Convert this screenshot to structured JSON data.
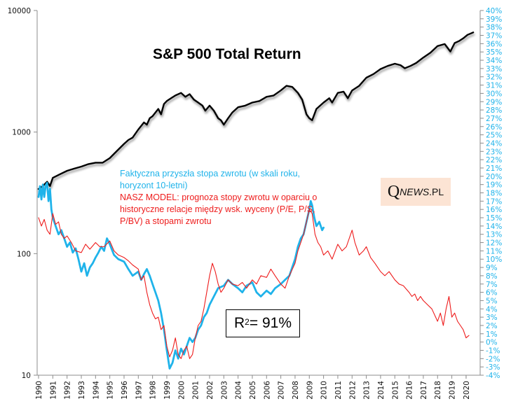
{
  "chart_data": {
    "type": "line",
    "title": "S&P 500 Total Return",
    "xlabel": "",
    "ylabel_left": "",
    "ylabel_right": "",
    "x_range": [
      1990,
      2021
    ],
    "x_ticks": [
      "1990",
      "1991",
      "1992",
      "1993",
      "1994",
      "1995",
      "1996",
      "1997",
      "1998",
      "1999",
      "2000",
      "2001",
      "2002",
      "2003",
      "2004",
      "2005",
      "2006",
      "2007",
      "2008",
      "2009",
      "2010",
      "2011",
      "2012",
      "2013",
      "2014",
      "2015",
      "2016",
      "2017",
      "2018",
      "2019",
      "2020"
    ],
    "y_left": {
      "scale": "log",
      "range": [
        10,
        10000
      ],
      "ticks": [
        "10",
        "100",
        "1000",
        "10000"
      ]
    },
    "y_right": {
      "scale": "linear",
      "range": [
        -4,
        40
      ],
      "ticks": [
        "40%",
        "39%",
        "38%",
        "37%",
        "36%",
        "35%",
        "34%",
        "33%",
        "32%",
        "31%",
        "30%",
        "29%",
        "28%",
        "27%",
        "26%",
        "25%",
        "24%",
        "23%",
        "22%",
        "21%",
        "20%",
        "19%",
        "18%",
        "17%",
        "16%",
        "15%",
        "14%",
        "13%",
        "12%",
        "11%",
        "10%",
        "9%",
        "8%",
        "7%",
        "6%",
        "5%",
        "4%",
        "3%",
        "2%",
        "1%",
        "0%",
        "-1%",
        "-2%",
        "-3%",
        "-4%"
      ]
    },
    "grid": false,
    "legend": {
      "placement": "center-left",
      "entries": [
        {
          "name": "Faktyczna przyszła stopa zwrotu (w skali roku, horyzont 10-letni)",
          "color": "#1fb3ea"
        },
        {
          "name": "NASZ MODEL: prognoza stopy zwrotu w oparciu o historyczne relacje między wsk. wyceny (P/E, P/S, P/BV) a stopami zwrotu",
          "color": "#ee1c1c"
        }
      ]
    },
    "series": [
      {
        "name": "S&P 500 Total Return",
        "axis": "left",
        "color": "#000000",
        "x": [
          1990.0,
          1990.3,
          1990.6,
          1990.8,
          1991.0,
          1991.5,
          1992.0,
          1992.5,
          1993.0,
          1993.5,
          1994.0,
          1994.5,
          1995.0,
          1995.5,
          1996.0,
          1996.3,
          1996.6,
          1997.0,
          1997.4,
          1997.6,
          1997.8,
          1998.0,
          1998.4,
          1998.6,
          1998.8,
          1999.0,
          1999.3,
          1999.6,
          2000.0,
          2000.3,
          2000.6,
          2000.9,
          2001.2,
          2001.5,
          2001.7,
          2002.0,
          2002.3,
          2002.6,
          2002.8,
          2003.0,
          2003.3,
          2003.6,
          2004.0,
          2004.5,
          2005.0,
          2005.5,
          2006.0,
          2006.5,
          2007.0,
          2007.4,
          2007.8,
          2008.2,
          2008.5,
          2008.8,
          2009.0,
          2009.2,
          2009.5,
          2010.0,
          2010.4,
          2010.6,
          2011.0,
          2011.4,
          2011.7,
          2012.0,
          2012.5,
          2013.0,
          2013.5,
          2014.0,
          2014.5,
          2015.0,
          2015.4,
          2015.7,
          2016.1,
          2016.5,
          2017.0,
          2017.5,
          2018.0,
          2018.5,
          2018.9,
          2019.2,
          2019.5,
          2019.8,
          2020.1,
          2020.5
        ],
        "values": [
          340,
          360,
          390,
          360,
          420,
          450,
          480,
          500,
          520,
          545,
          560,
          560,
          610,
          700,
          800,
          860,
          900,
          1050,
          1200,
          1150,
          1300,
          1350,
          1550,
          1400,
          1700,
          1800,
          1900,
          2000,
          2100,
          1950,
          2050,
          1850,
          1750,
          1650,
          1500,
          1650,
          1500,
          1300,
          1250,
          1150,
          1300,
          1450,
          1600,
          1650,
          1750,
          1800,
          1950,
          2000,
          2200,
          2400,
          2350,
          2100,
          1850,
          1400,
          1300,
          1250,
          1550,
          1750,
          1900,
          1750,
          2100,
          2150,
          1900,
          2200,
          2400,
          2800,
          3000,
          3300,
          3500,
          3650,
          3550,
          3350,
          3500,
          3700,
          4100,
          4500,
          5100,
          5300,
          4600,
          5400,
          5600,
          5900,
          6300,
          6600
        ]
      },
      {
        "name": "Faktyczna przyszła stopa zwrotu (w skali roku, horyzont 10-letni)",
        "axis": "right",
        "unit": "%",
        "color": "#1fb3ea",
        "x": [
          1990.0,
          1990.1,
          1990.2,
          1990.3,
          1990.4,
          1990.5,
          1990.6,
          1990.7,
          1990.8,
          1990.9,
          1991.0,
          1991.2,
          1991.4,
          1991.6,
          1991.8,
          1992.0,
          1992.2,
          1992.4,
          1992.6,
          1992.8,
          1993.0,
          1993.2,
          1993.4,
          1993.6,
          1993.8,
          1994.0,
          1994.2,
          1994.4,
          1994.6,
          1994.8,
          1995.0,
          1995.3,
          1995.6,
          1996.0,
          1996.3,
          1996.6,
          1997.0,
          1997.2,
          1997.4,
          1997.6,
          1997.8,
          1998.0,
          1998.2,
          1998.4,
          1998.6,
          1998.8,
          1999.0,
          1999.2,
          1999.4,
          1999.6,
          1999.8,
          2000.0,
          2000.2,
          2000.4,
          2000.6,
          2000.8,
          2001.0,
          2001.2,
          2001.4,
          2001.6,
          2001.8,
          2002.0,
          2002.3,
          2002.6,
          2003.0,
          2003.3,
          2003.6,
          2004.0,
          2004.3,
          2004.6,
          2005.0,
          2005.3,
          2005.6,
          2006.0,
          2006.3,
          2006.6,
          2007.0,
          2007.3,
          2007.6,
          2008.0,
          2008.2,
          2008.4,
          2008.6,
          2008.8,
          2009.0,
          2009.1,
          2009.2,
          2009.35,
          2009.5,
          2009.7,
          2009.9,
          2010.0
        ],
        "values": [
          17.5,
          18.8,
          17.2,
          19.0,
          17.5,
          18.9,
          19.2,
          17.0,
          18.5,
          16.0,
          15.0,
          14.0,
          13.0,
          13.5,
          12.5,
          11.5,
          12.0,
          10.8,
          11.3,
          10.0,
          8.5,
          9.5,
          8.0,
          9.0,
          9.5,
          10.2,
          10.8,
          11.5,
          11.0,
          12.5,
          11.8,
          10.5,
          10.0,
          9.7,
          8.8,
          8.0,
          8.5,
          7.5,
          8.2,
          8.8,
          8.0,
          7.0,
          6.0,
          5.0,
          3.5,
          1.5,
          -1.0,
          -3.2,
          -2.5,
          -1.0,
          -2.0,
          -0.8,
          -1.5,
          -0.5,
          0.5,
          0.0,
          0.5,
          1.5,
          2.0,
          3.0,
          3.5,
          4.5,
          5.5,
          6.5,
          6.8,
          7.5,
          7.0,
          6.5,
          6.0,
          6.8,
          7.2,
          6.0,
          5.5,
          6.2,
          5.8,
          6.5,
          7.0,
          7.5,
          8.0,
          10.0,
          11.5,
          12.5,
          13.0,
          14.5,
          16.0,
          17.0,
          16.5,
          15.0,
          14.0,
          14.5,
          13.5,
          13.8
        ]
      },
      {
        "name": "NASZ MODEL: prognoza stopy zwrotu",
        "axis": "right",
        "unit": "%",
        "color": "#ee1c1c",
        "x": [
          1990.0,
          1990.2,
          1990.4,
          1990.6,
          1990.8,
          1991.0,
          1991.2,
          1991.4,
          1991.6,
          1991.8,
          1992.0,
          1992.3,
          1992.6,
          1993.0,
          1993.3,
          1993.6,
          1994.0,
          1994.3,
          1994.6,
          1995.0,
          1995.3,
          1995.6,
          1996.0,
          1996.3,
          1996.6,
          1997.0,
          1997.2,
          1997.4,
          1997.6,
          1997.8,
          1998.0,
          1998.2,
          1998.4,
          1998.6,
          1998.8,
          1999.0,
          1999.2,
          1999.4,
          1999.6,
          1999.8,
          2000.0,
          2000.2,
          2000.4,
          2000.6,
          2000.8,
          2001.0,
          2001.2,
          2001.4,
          2001.6,
          2001.8,
          2002.0,
          2002.2,
          2002.4,
          2002.6,
          2002.8,
          2003.0,
          2003.3,
          2003.6,
          2004.0,
          2004.3,
          2004.6,
          2005.0,
          2005.3,
          2005.6,
          2006.0,
          2006.3,
          2006.6,
          2007.0,
          2007.3,
          2007.6,
          2008.0,
          2008.2,
          2008.4,
          2008.6,
          2008.8,
          2009.0,
          2009.2,
          2009.4,
          2009.6,
          2009.8,
          2010.0,
          2010.3,
          2010.6,
          2011.0,
          2011.3,
          2011.6,
          2012.0,
          2012.2,
          2012.5,
          2012.8,
          2013.0,
          2013.3,
          2013.6,
          2014.0,
          2014.3,
          2014.6,
          2015.0,
          2015.3,
          2015.6,
          2016.0,
          2016.2,
          2016.4,
          2016.6,
          2016.8,
          2017.0,
          2017.3,
          2017.6,
          2018.0,
          2018.2,
          2018.4,
          2018.6,
          2018.8,
          2019.0,
          2019.2,
          2019.4,
          2019.6,
          2019.8,
          2020.0,
          2020.2
        ],
        "values": [
          15.0,
          14.0,
          14.8,
          13.5,
          13.0,
          15.5,
          14.2,
          14.5,
          13.0,
          12.5,
          12.8,
          12.0,
          11.0,
          10.8,
          11.8,
          11.2,
          12.0,
          11.5,
          11.5,
          12.2,
          11.0,
          10.5,
          10.2,
          9.8,
          9.3,
          8.8,
          7.5,
          8.0,
          6.0,
          4.5,
          3.5,
          2.8,
          3.0,
          1.5,
          2.0,
          -0.5,
          -1.8,
          -1.0,
          0.5,
          -1.5,
          -2.0,
          -1.0,
          -0.5,
          -2.0,
          -1.5,
          0.5,
          2.0,
          2.5,
          4.0,
          6.0,
          8.0,
          9.5,
          8.5,
          7.0,
          6.0,
          6.5,
          7.5,
          7.0,
          6.8,
          7.2,
          6.5,
          7.5,
          7.0,
          8.0,
          7.8,
          8.8,
          8.0,
          7.0,
          6.5,
          8.0,
          9.5,
          11.0,
          12.0,
          13.0,
          14.5,
          16.0,
          15.5,
          13.0,
          12.0,
          11.5,
          10.5,
          11.0,
          10.0,
          11.8,
          11.0,
          11.5,
          13.5,
          12.0,
          10.5,
          11.0,
          11.5,
          10.2,
          9.5,
          8.5,
          8.0,
          8.5,
          7.5,
          7.0,
          6.8,
          6.0,
          5.5,
          5.8,
          5.0,
          5.5,
          5.0,
          4.5,
          4.0,
          2.5,
          3.5,
          2.0,
          4.0,
          5.5,
          3.0,
          3.5,
          2.5,
          2.0,
          1.5,
          0.5,
          0.8
        ]
      }
    ],
    "annotations": [
      {
        "text": "R² = 91%"
      },
      {
        "text": "QNEWS.PL"
      }
    ]
  },
  "labels": {
    "title": "S&P 500 Total Return",
    "legend_blue": "Faktyczna przyszła stopa zwrotu (w skali roku, horyzont 10-letni)",
    "legend_red": "NASZ MODEL:  prognoza stopy zwrotu w oparciu o historyczne relacje między wsk. wyceny (P/E, P/S, P/BV) a stopami zwrotu",
    "logo_q": "Q",
    "logo_news": "NEWS",
    "logo_pl": ".PL",
    "r2_prefix": "R",
    "r2_sup": "2",
    "r2_suffix": " = 91%"
  }
}
